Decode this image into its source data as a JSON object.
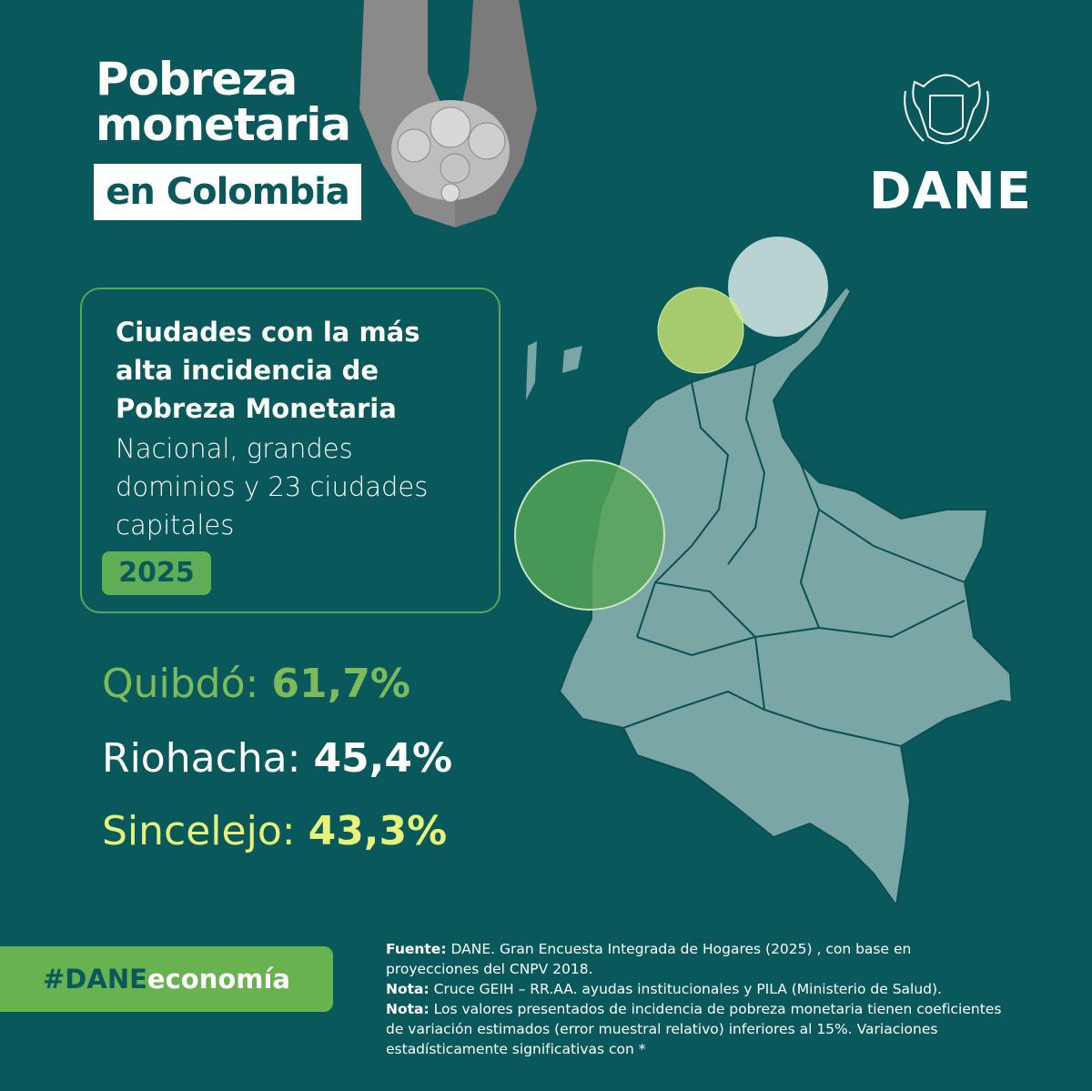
{
  "header": {
    "title_lines": [
      "Pobreza",
      "monetaria"
    ],
    "title_highlight": "en Colombia",
    "logo": "DANE"
  },
  "info_box": {
    "heading_lines": [
      "Ciudades con la más",
      "alta incidencia de",
      "Pobreza Monetaria"
    ],
    "subtitle_lines": [
      "Nacional, grandes",
      "dominios y 23 ciudades",
      "capitales"
    ],
    "year": "2025"
  },
  "cities": [
    {
      "name": "Quibdó:",
      "value": "61,7%"
    },
    {
      "name": "Riohacha:",
      "value": "45,4%"
    },
    {
      "name": "Sincelejo:",
      "value": "43,3%"
    }
  ],
  "hashtag": {
    "bold": "#DANE",
    "rest": "economía"
  },
  "footer": [
    {
      "label": "Fuente:",
      "text": "DANE. Gran Encuesta Integrada de Hogares (2025) , con base en proyecciones del CNPV 2018."
    },
    {
      "label": "Nota:",
      "text": "Cruce GEIH – RR.AA. ayudas institucionales y PILA (Ministerio de Salud)."
    },
    {
      "label": "Nota:",
      "text": "Los valores presentados de incidencia de pobreza monetaria tienen coeficientes de variación estimados (error muestral relativo) inferiores al 15%. Variaciones estadísticamente significativas con *"
    }
  ]
}
